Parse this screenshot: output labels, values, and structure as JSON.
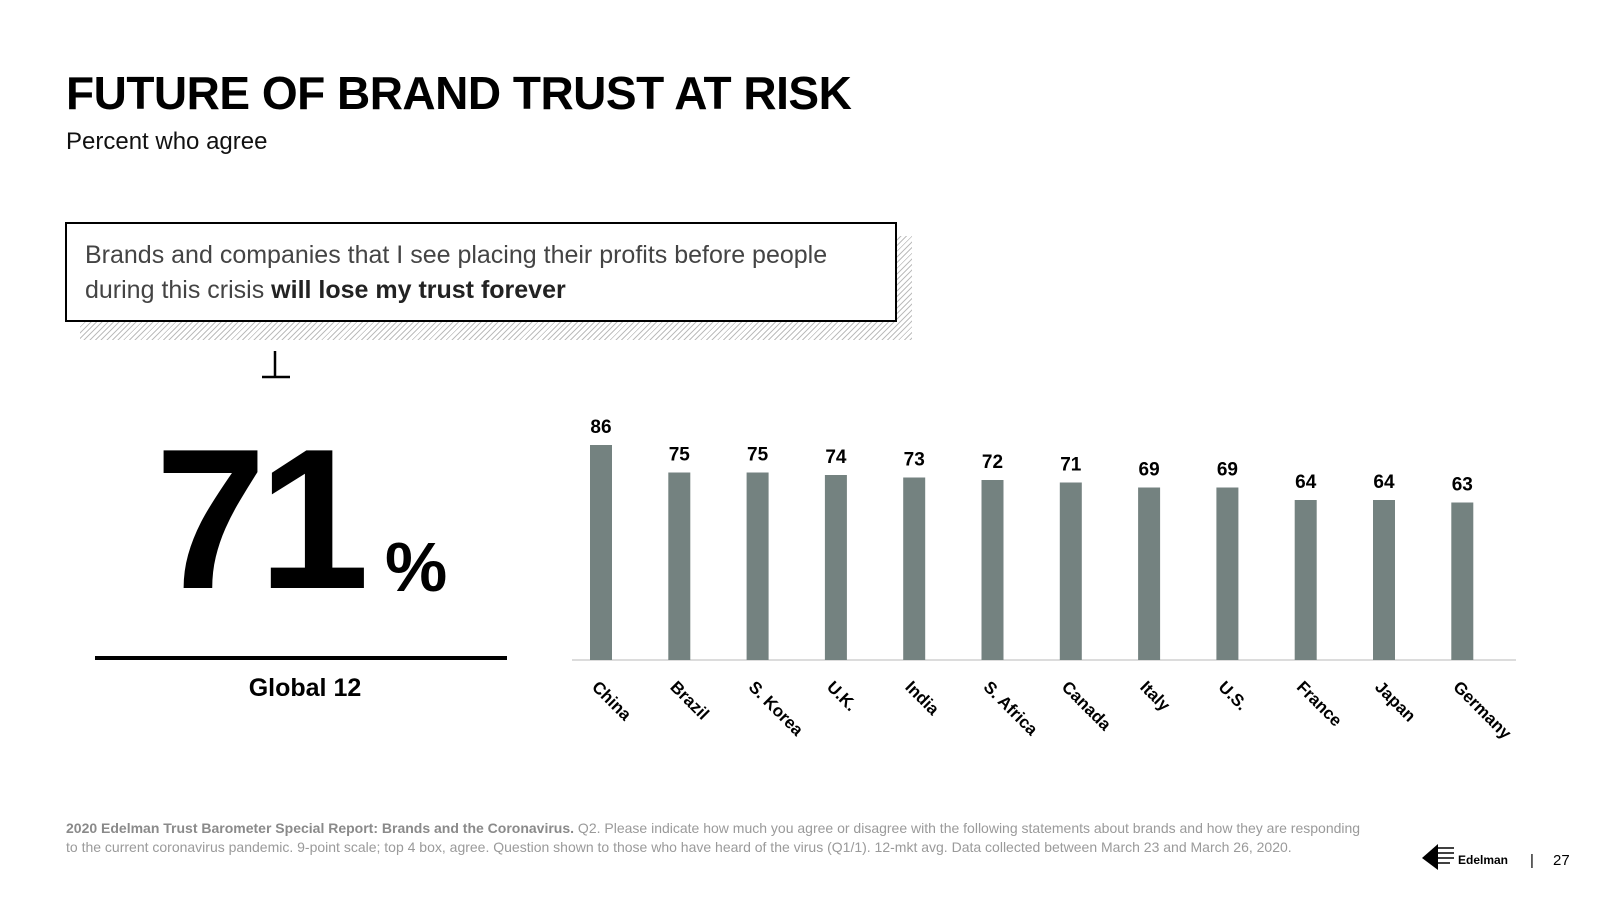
{
  "slide": {
    "title": "FUTURE OF BRAND TRUST AT RISK",
    "subtitle": "Percent who agree"
  },
  "statement": {
    "lead": "Brands and companies that I see placing their profits before people during this crisis ",
    "emphasis": "will lose my trust forever"
  },
  "global": {
    "value": "71",
    "unit": "%",
    "label": "Global 12"
  },
  "chart_data": {
    "type": "bar",
    "categories": [
      "China",
      "Brazil",
      "S. Korea",
      "U.K.",
      "India",
      "S. Africa",
      "Canada",
      "Italy",
      "U.S.",
      "France",
      "Japan",
      "Germany"
    ],
    "values": [
      86,
      75,
      75,
      74,
      73,
      72,
      71,
      69,
      69,
      64,
      64,
      63
    ],
    "title": "",
    "xlabel": "",
    "ylabel": "",
    "ylim": [
      0,
      100
    ],
    "grid": false,
    "bar_color": "#748280",
    "data_labels": true
  },
  "footnote": {
    "bold": "2020 Edelman Trust Barometer Special Report: Brands and the Coronavirus.",
    "text": " Q2. Please indicate how much you agree or disagree with the following statements about brands and how they are responding to the current coronavirus pandemic. 9-point scale; top 4 box, agree. Question shown to those who have heard of the virus (Q1/1). 12-mkt avg. Data collected between March 23 and March 26, 2020."
  },
  "brand": {
    "logo_icon": "edelman-logo-icon",
    "name": "Edelman",
    "separator": "|",
    "page_number": "27"
  }
}
